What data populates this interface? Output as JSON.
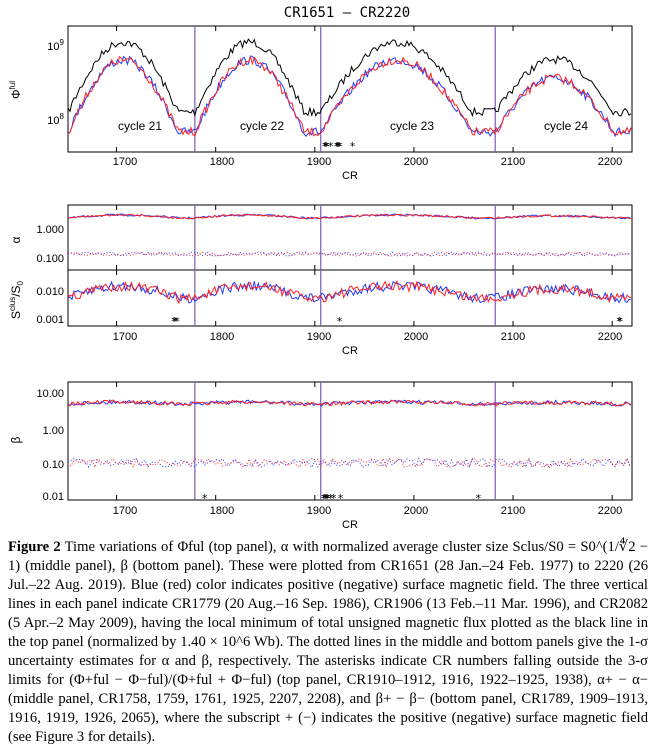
{
  "figure": {
    "title": "CR1651 – CR2220",
    "x_tick_labels": [
      "1700",
      "1800",
      "1900",
      "2000",
      "2100",
      "2200"
    ],
    "xlabel": "CR",
    "vlines_cr": [
      1779,
      1906,
      2082
    ],
    "colors": {
      "black": "#000000",
      "blue": "#1f3cff",
      "red": "#ff2020",
      "vline": "#7a5ab5"
    },
    "panels": [
      {
        "id": "top",
        "ylabel": "Φful",
        "y_scale": "log",
        "y_ticks": [
          "10^9",
          "10^8"
        ],
        "cycle_labels": [
          "cycle 21",
          "cycle 22",
          "cycle 23",
          "cycle 24"
        ],
        "asterisks_cr": [
          1910,
          1911,
          1912,
          1916,
          1922,
          1923,
          1924,
          1925,
          1938
        ]
      },
      {
        "id": "alpha",
        "ylabel": "α",
        "y_ticks": [
          "1.000",
          "0.100"
        ],
        "asterisks_cr": []
      },
      {
        "id": "sclus",
        "ylabel": "Sclus/S0",
        "y_ticks": [
          "0.010",
          "0.001"
        ],
        "asterisks_cr": [
          1758,
          1759,
          1761,
          1925,
          2207,
          2208
        ]
      },
      {
        "id": "beta",
        "ylabel": "β",
        "y_ticks": [
          "10.00",
          "1.00",
          "0.10",
          "0.01"
        ],
        "asterisks_cr": [
          1789,
          1909,
          1910,
          1911,
          1912,
          1913,
          1916,
          1919,
          1926,
          2065
        ]
      }
    ]
  },
  "caption": {
    "label": "Figure 2",
    "text": "Time variations of Φful (top panel), α with normalized average cluster size Sclus/S0 = S0^(1/∜2 − 1) (middle panel), β (bottom panel). These were plotted from CR1651 (28 Jan.–24 Feb. 1977) to 2220 (26 Jul.–22 Aug. 2019). Blue (red) color indicates positive (negative) surface magnetic field. The three vertical lines in each panel indicate CR1779 (20 Aug.–16 Sep. 1986), CR1906 (13 Feb.–11 Mar. 1996), and CR2082 (5 Apr.–2 May 2009), having the local minimum of total unsigned magnetic flux plotted as the black line in the top panel (normalized by 1.40 × 10^6 Wb). The dotted lines in the middle and bottom panels give the 1-σ uncertainty estimates for α and β, respectively. The asterisks indicate CR numbers falling outside the 3-σ limits for (Φ+ful − Φ−ful)/(Φ+ful + Φ−ful) (top panel, CR1910–1912, 1916, 1922–1925, 1938), α+ − α− (middle panel, CR1758, 1759, 1761, 1925, 2207, 2208), and β+ − β− (bottom panel, CR1789, 1909–1913, 1916, 1919, 1926, 2065), where the subscript + (−) indicates the positive (negative) surface magnetic field (see Figure 3 for details)."
  }
}
